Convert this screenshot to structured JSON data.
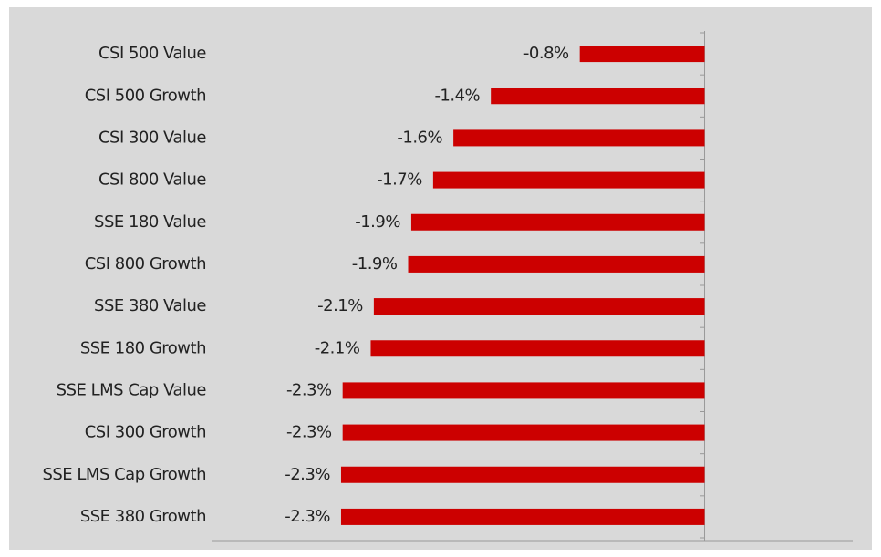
{
  "chart_data": {
    "type": "bar",
    "orientation": "horizontal",
    "categories": [
      "CSI 500 Value",
      "CSI 500 Growth",
      "CSI 300 Value",
      "CSI 800 Value",
      "SSE 180 Value",
      "CSI 800 Growth",
      "SSE 380 Value",
      "SSE 180 Growth",
      "SSE LMS Cap Value",
      "CSI 300 Growth",
      "SSE LMS Cap Growth",
      "SSE 380 Growth"
    ],
    "values": [
      -0.8,
      -1.37,
      -1.61,
      -1.74,
      -1.88,
      -1.9,
      -2.12,
      -2.14,
      -2.32,
      -2.32,
      -2.33,
      -2.33
    ],
    "value_labels": [
      "-0.8%",
      "-1.4%",
      "-1.6%",
      "-1.7%",
      "-1.9%",
      "-1.9%",
      "-2.1%",
      "-2.1%",
      "-2.3%",
      "-2.3%",
      "-2.3%",
      "-2.3%"
    ],
    "color": "#cc0000",
    "xlim": [
      -3.16,
      0.95
    ]
  }
}
